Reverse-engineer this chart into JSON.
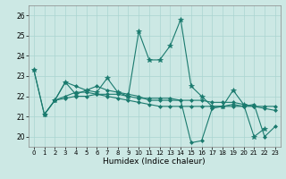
{
  "xlabel": "Humidex (Indice chaleur)",
  "bg_color": "#cce8e4",
  "grid_color": "#aad4d0",
  "line_color": "#1a7a6e",
  "xlim": [
    -0.5,
    23.5
  ],
  "ylim": [
    19.5,
    26.5
  ],
  "yticks": [
    20,
    21,
    22,
    23,
    24,
    25,
    26
  ],
  "xticks": [
    0,
    1,
    2,
    3,
    4,
    5,
    6,
    7,
    8,
    9,
    10,
    11,
    12,
    13,
    14,
    15,
    16,
    17,
    18,
    19,
    20,
    21,
    22,
    23
  ],
  "series": [
    {
      "x": [
        0,
        1,
        2,
        3,
        4,
        5,
        6,
        7,
        8,
        9,
        10,
        11,
        12,
        13,
        14,
        15,
        16,
        17,
        18,
        19,
        20,
        21,
        22
      ],
      "y": [
        23.3,
        21.1,
        21.8,
        22.7,
        22.1,
        22.3,
        22.2,
        22.9,
        22.2,
        22.0,
        25.2,
        23.8,
        23.8,
        24.5,
        25.8,
        22.5,
        22.0,
        21.5,
        21.5,
        22.3,
        21.6,
        20.0,
        20.4
      ],
      "marker": "*",
      "ms": 4
    },
    {
      "x": [
        0,
        1,
        2,
        3,
        4,
        5,
        6,
        7,
        8,
        9,
        10,
        11,
        12,
        13,
        14,
        15,
        16,
        17,
        18,
        19,
        20,
        21,
        22,
        23
      ],
      "y": [
        23.3,
        21.1,
        21.8,
        22.0,
        22.2,
        22.2,
        22.1,
        22.0,
        21.9,
        21.8,
        21.7,
        21.6,
        21.5,
        21.5,
        21.5,
        21.5,
        21.5,
        21.5,
        21.5,
        21.5,
        21.5,
        21.5,
        21.5,
        21.5
      ],
      "marker": "D",
      "ms": 2
    },
    {
      "x": [
        2,
        3,
        4,
        5,
        6,
        7,
        8,
        9,
        10,
        11,
        12,
        13,
        14,
        15,
        16,
        17,
        18,
        19,
        20,
        21,
        22,
        23
      ],
      "y": [
        21.8,
        21.9,
        22.0,
        22.0,
        22.1,
        22.1,
        22.1,
        22.0,
        21.9,
        21.9,
        21.9,
        21.9,
        21.8,
        21.8,
        21.8,
        21.7,
        21.7,
        21.7,
        21.6,
        21.5,
        21.4,
        21.3
      ],
      "marker": "D",
      "ms": 2
    },
    {
      "x": [
        1,
        2,
        3,
        4,
        5,
        6,
        7,
        8,
        9,
        10,
        11,
        12,
        13,
        14,
        15,
        16,
        17,
        18,
        19,
        20,
        21,
        22,
        23
      ],
      "y": [
        21.1,
        21.8,
        22.7,
        22.5,
        22.3,
        22.5,
        22.3,
        22.2,
        22.1,
        22.0,
        21.8,
        21.8,
        21.8,
        21.8,
        19.7,
        19.8,
        21.4,
        21.5,
        21.6,
        21.5,
        21.6,
        20.0,
        20.5
      ],
      "marker": "D",
      "ms": 2
    }
  ]
}
